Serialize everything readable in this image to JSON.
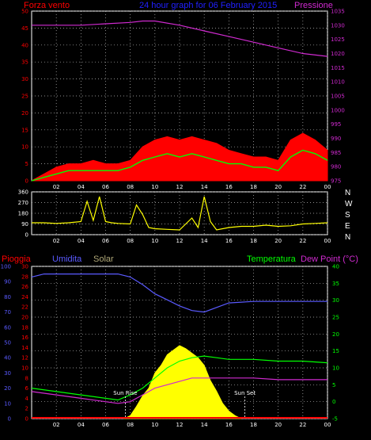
{
  "title": "24 hour graph for 06 February 2015",
  "chart_data": [
    {
      "type": "line",
      "name": "wind-pressure",
      "labels": {
        "left": "Forza vento",
        "right": "Pressione"
      },
      "x_ticks": [
        "02",
        "04",
        "06",
        "08",
        "10",
        "12",
        "14",
        "16",
        "18",
        "20",
        "22",
        "00"
      ],
      "y_left_ticks": [
        "0",
        "5",
        "10",
        "15",
        "20",
        "25",
        "30",
        "35",
        "40",
        "45",
        "50"
      ],
      "y_right_ticks": [
        "975",
        "980",
        "985",
        "990",
        "995",
        "1000",
        "1005",
        "1010",
        "1015",
        "1020",
        "1025",
        "1030",
        "1035"
      ],
      "y_left_range": [
        0,
        50
      ],
      "y_right_range": [
        975,
        1035
      ],
      "pressure": {
        "x": [
          0,
          4,
          6,
          8,
          9,
          10,
          12,
          14,
          16,
          18,
          20,
          22,
          24
        ],
        "y": [
          1030,
          1030,
          1030.5,
          1031,
          1031.5,
          1031.5,
          1030,
          1028,
          1026,
          1024,
          1022,
          1020,
          1019
        ]
      },
      "gust": {
        "x": [
          0,
          1,
          2,
          3,
          4,
          5,
          6,
          7,
          8,
          9,
          10,
          11,
          12,
          13,
          14,
          15,
          16,
          17,
          18,
          19,
          20,
          21,
          22,
          23,
          24
        ],
        "y": [
          0,
          2,
          4,
          5,
          5,
          6,
          5,
          5,
          6,
          10,
          12,
          13,
          12,
          13,
          12,
          11,
          9,
          8,
          7,
          7,
          6,
          12,
          14,
          12,
          9
        ]
      },
      "average": {
        "x": [
          0,
          1,
          2,
          3,
          4,
          5,
          6,
          7,
          8,
          9,
          10,
          11,
          12,
          13,
          14,
          15,
          16,
          17,
          18,
          19,
          20,
          21,
          22,
          23,
          24
        ],
        "y": [
          0,
          1,
          2,
          3,
          3,
          3,
          3,
          3,
          4,
          6,
          7,
          8,
          7,
          8,
          7,
          6,
          5,
          5,
          4,
          4,
          3,
          7,
          9,
          8,
          6
        ]
      },
      "colors": {
        "pressure": "#d02ad0",
        "gust": "#ff0000",
        "average": "#00ff00",
        "min": "#ffffff"
      }
    },
    {
      "type": "line",
      "name": "wind-direction",
      "labels": {
        "right": [
          "N",
          "W",
          "S",
          "E",
          "N"
        ]
      },
      "x_ticks": [
        "02",
        "04",
        "06",
        "08",
        "10",
        "12",
        "14",
        "16",
        "18",
        "20",
        "22",
        "00"
      ],
      "y_left_ticks": [
        "0",
        "90",
        "180",
        "270",
        "360"
      ],
      "y_range": [
        0,
        360
      ],
      "direction": {
        "x": [
          0,
          1,
          2,
          3,
          4,
          4.5,
          5,
          5.5,
          6,
          6.5,
          7,
          8,
          8.5,
          9,
          9.5,
          10,
          11,
          12,
          12.5,
          13,
          13.5,
          14,
          14.5,
          15,
          16,
          17,
          18,
          19,
          20,
          21,
          22,
          23,
          24
        ],
        "y": [
          100,
          100,
          95,
          100,
          110,
          280,
          120,
          320,
          110,
          100,
          95,
          90,
          250,
          170,
          60,
          50,
          45,
          40,
          90,
          140,
          60,
          320,
          110,
          40,
          60,
          70,
          70,
          80,
          70,
          75,
          90,
          95,
          100
        ]
      },
      "colors": {
        "direction": "#ffff00"
      }
    },
    {
      "type": "line",
      "name": "humidity-temperature",
      "labels": {
        "rain": "Pioggia",
        "humidity": "Umidita",
        "solar": "Solar",
        "temperature": "Temperatura",
        "dewpoint": "Dew Point (°C)",
        "sunrise": "Sun Rise",
        "sunset": "Sun Set"
      },
      "x_ticks": [
        "02",
        "04",
        "06",
        "08",
        "10",
        "12",
        "14",
        "16",
        "18",
        "20",
        "22",
        "00"
      ],
      "y_rain_ticks": [
        "0",
        "10",
        "20",
        "30",
        "40",
        "50",
        "60",
        "70",
        "80",
        "90",
        "100"
      ],
      "y_humidity_ticks": [
        "0",
        "2",
        "4",
        "6",
        "8",
        "10",
        "12",
        "14",
        "16",
        "18",
        "20",
        "22",
        "24",
        "26",
        "28",
        "30"
      ],
      "y_right_ticks": [
        "-5",
        "0",
        "5",
        "10",
        "15",
        "20",
        "25",
        "30",
        "35",
        "40"
      ],
      "y_humidity_range": [
        0,
        100
      ],
      "y_temperature_range": [
        -5,
        40
      ],
      "humidity": {
        "x": [
          0,
          1,
          4,
          7,
          8,
          9,
          10,
          11,
          12,
          13,
          14,
          15,
          16,
          18,
          20,
          22,
          24
        ],
        "y": [
          93,
          95,
          95,
          95,
          93,
          88,
          82,
          78,
          74,
          71,
          70,
          73,
          76,
          77,
          77,
          77,
          77
        ]
      },
      "temperature": {
        "x": [
          0,
          2,
          4,
          6,
          7,
          8,
          9,
          10,
          11,
          12,
          13,
          14,
          15,
          16,
          18,
          20,
          22,
          24
        ],
        "y": [
          4,
          3,
          2,
          1,
          0.5,
          2,
          4,
          7,
          10,
          12,
          13,
          13.5,
          13,
          12.5,
          12.5,
          12,
          12,
          11.5
        ]
      },
      "dewpoint": {
        "x": [
          0,
          2,
          4,
          6,
          7,
          8,
          9,
          10,
          11,
          12,
          13,
          14,
          16,
          18,
          20,
          22,
          24
        ],
        "y": [
          3,
          2,
          1,
          0,
          -0.5,
          0,
          2,
          4,
          5,
          6,
          7,
          7,
          7,
          7,
          6.5,
          6.5,
          6.5
        ]
      },
      "solar": {
        "x": [
          7.5,
          8,
          8.5,
          9,
          9.5,
          10,
          10.5,
          11,
          11.5,
          12,
          12.5,
          13,
          13.5,
          14,
          14.5,
          15,
          15.5,
          16,
          16.5,
          17
        ],
        "y": [
          0,
          2,
          8,
          15,
          20,
          30,
          35,
          42,
          45,
          48,
          46,
          43,
          40,
          35,
          25,
          18,
          10,
          5,
          2,
          0
        ]
      },
      "sunrise_hour": 7.6,
      "sunset_hour": 17.3,
      "colors": {
        "humidity": "#5a5aff",
        "temperature": "#00ff00",
        "dewpoint": "#d02ad0",
        "solar": "#ffff00",
        "rain": "#ff0000"
      }
    }
  ]
}
